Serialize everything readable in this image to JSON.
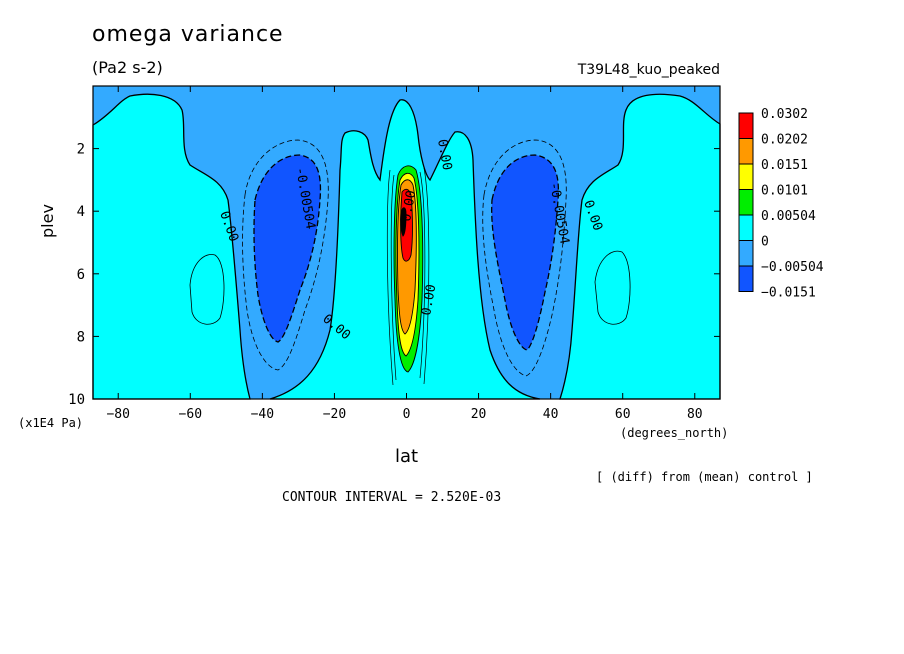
{
  "chart_data": {
    "type": "heatmap",
    "title": "omega variance",
    "subtitle": "(Pa2 s-2)",
    "run_label": "T39L48_kuo_peaked",
    "xlabel": "lat",
    "x_unit": "(degrees_north)",
    "ylabel": "plev",
    "y_unit": "(x1E4 Pa)",
    "note": "[ (diff) from (mean) control ]",
    "contour_interval": "CONTOUR INTERVAL = 2.520E-03",
    "xlim": [
      -87,
      87
    ],
    "ylim": [
      10,
      0
    ],
    "x_ticks": [
      "-80",
      "-60",
      "-40",
      "-20",
      "0",
      "20",
      "40",
      "60",
      "80"
    ],
    "y_ticks": [
      "2",
      "4",
      "6",
      "8",
      "10"
    ],
    "colorbar": {
      "labels": [
        "0.0302",
        "0.0202",
        "0.0151",
        "0.0101",
        "0.00504",
        "0",
        "−0.00504",
        "−0.0151"
      ],
      "colors": [
        "#ff0000",
        "#ff9900",
        "#ffff00",
        "#00ee00",
        "#00ffff",
        "#33aaff",
        "#1155ff"
      ]
    },
    "contour_labels": [
      "0.00",
      "-0.00504",
      "0.00",
      "0.00",
      "0.00",
      "-0.00504",
      "0.00",
      "0.00"
    ]
  }
}
